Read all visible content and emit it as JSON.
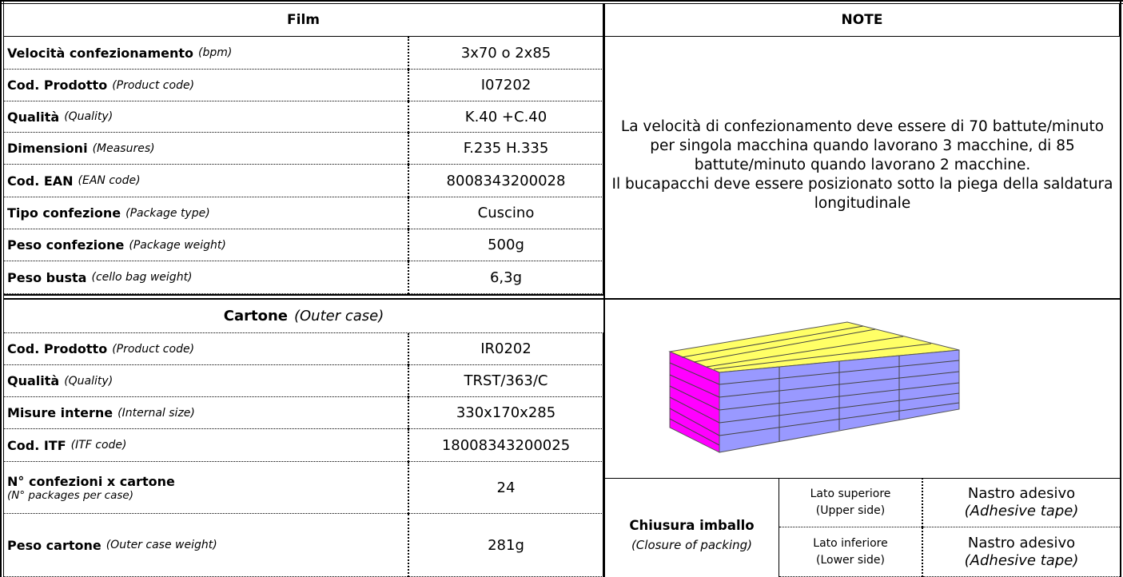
{
  "film_section": {
    "header": "Film",
    "rows": [
      {
        "label": "Velocità confezionamento",
        "label_en": "(bpm)",
        "value": "3x70 o 2x85"
      },
      {
        "label": "Cod. Prodotto",
        "label_en": "(Product code)",
        "value": "I07202"
      },
      {
        "label": "Qualità",
        "label_en": "(Quality)",
        "value": "K.40 +C.40"
      },
      {
        "label": "Dimensioni",
        "label_en": "(Measures)",
        "value": "F.235 H.335"
      },
      {
        "label": "Cod. EAN",
        "label_en": "(EAN code)",
        "value": "8008343200028"
      },
      {
        "label": "Tipo confezione",
        "label_en": "(Package type)",
        "value": "Cuscino"
      },
      {
        "label": "Peso confezione",
        "label_en": "(Package weight)",
        "value": "500g"
      },
      {
        "label": "Peso busta",
        "label_en": "(cello bag weight)",
        "value": "6,3g"
      }
    ]
  },
  "notes": {
    "header": "NOTE",
    "paragraphs": [
      "La velocità di confezionamento deve essere di 70 battute/minuto per singola macchina quando lavorano 3 macchine, di 85 battute/minuto quando lavorano 2 macchine.",
      "Il bucapacchi deve essere posizionato sotto la piega della saldatura longitudinale"
    ]
  },
  "carton_section": {
    "header": "Cartone",
    "header_en": "(Outer case)",
    "rows": [
      {
        "label": "Cod. Prodotto",
        "label_en": "(Product code)",
        "value": "IR0202"
      },
      {
        "label": "Qualità",
        "label_en": "(Quality)",
        "value": "TRST/363/C"
      },
      {
        "label": "Misure interne",
        "label_en": "(Internal size)",
        "value": "330x170x285"
      },
      {
        "label": "Cod. ITF",
        "label_en": "(ITF code)",
        "value": "18008343200025"
      },
      {
        "label": "N° confezioni x cartone",
        "label_en": "(N° packages per case)",
        "value": "24"
      },
      {
        "label": "Peso cartone",
        "label_en": "(Outer case weight)",
        "value": "281g"
      }
    ]
  },
  "closure": {
    "label": "Chiusura imballo",
    "label_en": "(Closure of packing)",
    "rows": [
      {
        "side": "Lato superiore",
        "side_en": "(Upper side)",
        "method": "Nastro adesivo",
        "method_en": "(Adhesive tape)"
      },
      {
        "side": "Lato inferiore",
        "side_en": "(Lower side)",
        "method": "Nastro adesivo",
        "method_en": "(Adhesive tape)"
      }
    ]
  }
}
